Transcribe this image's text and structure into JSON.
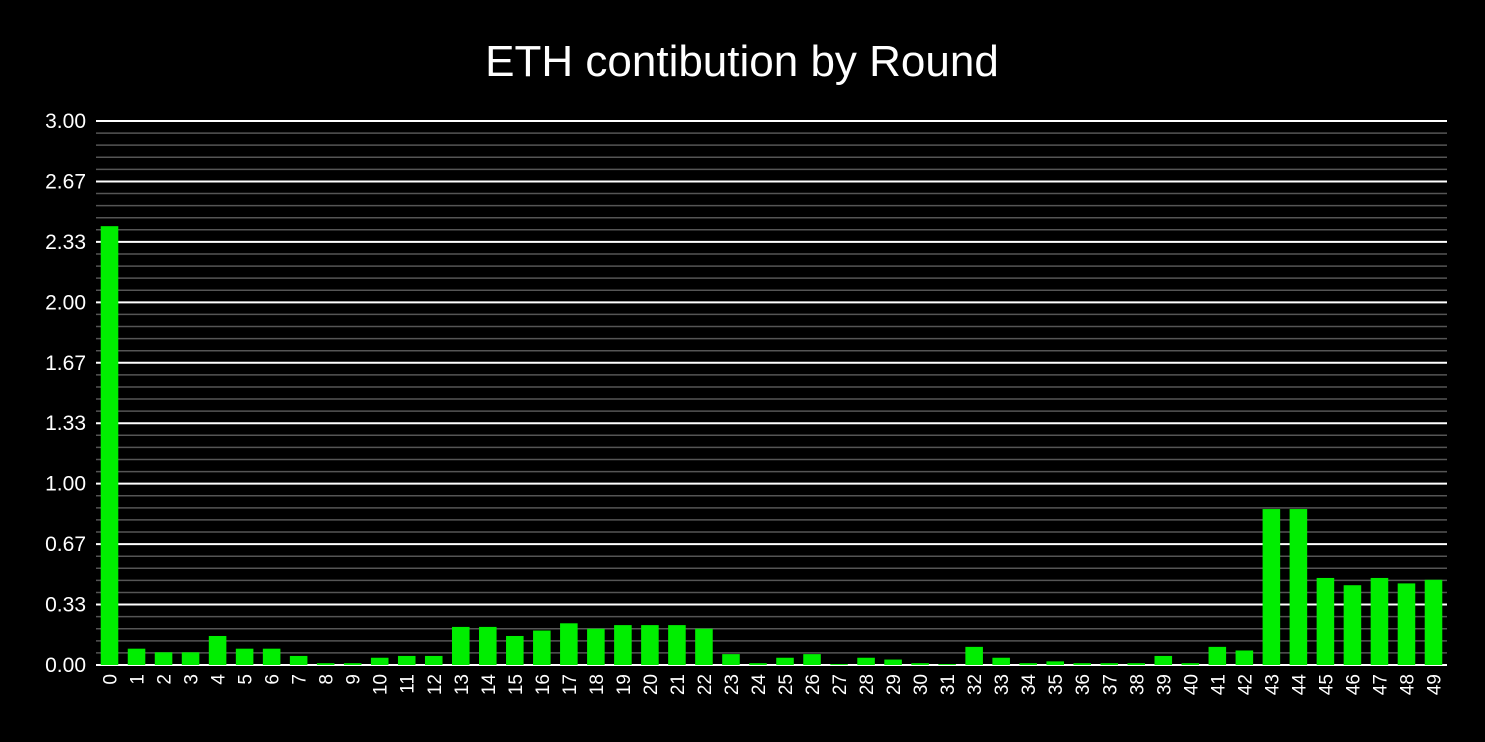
{
  "chart_data": {
    "type": "bar",
    "title": "ETH contibution by Round",
    "xlabel": "",
    "ylabel": "",
    "ylim": [
      0,
      3
    ],
    "yticks": [
      "0.00",
      "0.33",
      "0.67",
      "1.00",
      "1.33",
      "1.67",
      "2.00",
      "2.33",
      "2.67",
      "3.00"
    ],
    "grid": true,
    "legend": "none",
    "bar_color": "#00ee00",
    "categories": [
      "0",
      "1",
      "2",
      "3",
      "4",
      "5",
      "6",
      "7",
      "8",
      "9",
      "10",
      "11",
      "12",
      "13",
      "14",
      "15",
      "16",
      "17",
      "18",
      "19",
      "20",
      "21",
      "22",
      "23",
      "24",
      "25",
      "26",
      "27",
      "28",
      "29",
      "30",
      "31",
      "32",
      "33",
      "34",
      "35",
      "36",
      "37",
      "38",
      "39",
      "40",
      "41",
      "42",
      "43",
      "44",
      "45",
      "46",
      "47",
      "48",
      "49"
    ],
    "values": [
      2.42,
      0.09,
      0.07,
      0.07,
      0.16,
      0.09,
      0.09,
      0.05,
      0.01,
      0.01,
      0.04,
      0.05,
      0.05,
      0.21,
      0.21,
      0.16,
      0.19,
      0.23,
      0.2,
      0.22,
      0.22,
      0.22,
      0.2,
      0.06,
      0.01,
      0.04,
      0.06,
      0.005,
      0.04,
      0.03,
      0.01,
      0.005,
      0.1,
      0.04,
      0.01,
      0.02,
      0.01,
      0.01,
      0.01,
      0.05,
      0.01,
      0.1,
      0.08,
      0.86,
      0.86,
      0.48,
      0.44,
      0.48,
      0.45,
      0.47
    ]
  }
}
